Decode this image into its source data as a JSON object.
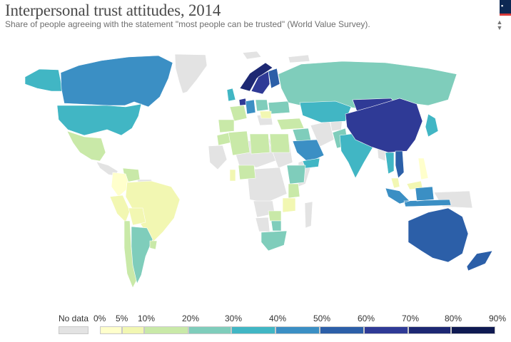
{
  "title": "Interpersonal trust attitudes, 2014",
  "subtitle": "Share of people agreeing with the statement \"most people can be trusted\" (World Value Survey).",
  "colors": {
    "no_data": "#e3e3e3",
    "ocean": "#ffffff",
    "border": "#ffffff",
    "bins": [
      "#ffffcc",
      "#f2f7b2",
      "#c9e9a8",
      "#7fcdbb",
      "#41b6c4",
      "#3b8fc4",
      "#2c5fa8",
      "#2f3a96",
      "#1d2873",
      "#0f1a52"
    ]
  },
  "legend": {
    "no_data_label": "No data",
    "ticks": [
      "0%",
      "5%",
      "10%",
      "20%",
      "30%",
      "40%",
      "50%",
      "60%",
      "70%",
      "80%",
      "90%"
    ]
  },
  "map_data": [
    {
      "region": "Canada",
      "value": 42
    },
    {
      "region": "United States",
      "value": 35
    },
    {
      "region": "Alaska",
      "value": 35
    },
    {
      "region": "Mexico",
      "value": 12
    },
    {
      "region": "Colombia",
      "value": 4
    },
    {
      "region": "Venezuela",
      "value": 13
    },
    {
      "region": "Peru",
      "value": 8
    },
    {
      "region": "Brazil",
      "value": 7
    },
    {
      "region": "Bolivia",
      "value": 9
    },
    {
      "region": "Chile",
      "value": 13
    },
    {
      "region": "Argentina",
      "value": 22
    },
    {
      "region": "Uruguay",
      "value": 15
    },
    {
      "region": "Sweden",
      "value": 62
    },
    {
      "region": "Norway",
      "value": 72
    },
    {
      "region": "Finland",
      "value": 58
    },
    {
      "region": "Netherlands",
      "value": 66
    },
    {
      "region": "Germany",
      "value": 42
    },
    {
      "region": "France",
      "value": 19
    },
    {
      "region": "Spain",
      "value": 19
    },
    {
      "region": "United Kingdom",
      "value": 30
    },
    {
      "region": "Poland",
      "value": 23
    },
    {
      "region": "Romania",
      "value": 8
    },
    {
      "region": "Ukraine",
      "value": 23
    },
    {
      "region": "Turkey",
      "value": 12
    },
    {
      "region": "Russia",
      "value": 27
    },
    {
      "region": "Kazakhstan",
      "value": 38
    },
    {
      "region": "China",
      "value": 63
    },
    {
      "region": "Mongolia",
      "value": 63
    },
    {
      "region": "Japan",
      "value": 35
    },
    {
      "region": "India",
      "value": 32
    },
    {
      "region": "Pakistan",
      "value": 24
    },
    {
      "region": "Iraq",
      "value": 25
    },
    {
      "region": "Saudi Arabia",
      "value": 49
    },
    {
      "region": "Yemen",
      "value": 38
    },
    {
      "region": "Vietnam",
      "value": 52
    },
    {
      "region": "Thailand",
      "value": 33
    },
    {
      "region": "Malaysia",
      "value": 9
    },
    {
      "region": "Philippines",
      "value": 3
    },
    {
      "region": "Indonesia",
      "value": 42
    },
    {
      "region": "Australia",
      "value": 53
    },
    {
      "region": "New Zealand",
      "value": 55
    },
    {
      "region": "Algeria",
      "value": 18
    },
    {
      "region": "Morocco",
      "value": 13
    },
    {
      "region": "Libya",
      "value": 10
    },
    {
      "region": "Egypt",
      "value": 13
    },
    {
      "region": "Nigeria",
      "value": 15
    },
    {
      "region": "Ghana",
      "value": 5
    },
    {
      "region": "Ethiopia",
      "value": 25
    },
    {
      "region": "Kenya",
      "value": 10
    },
    {
      "region": "Tanzania",
      "value": 8
    },
    {
      "region": "Zambia",
      "value": 15
    },
    {
      "region": "Zimbabwe",
      "value": 20
    },
    {
      "region": "South Africa",
      "value": 24
    }
  ]
}
